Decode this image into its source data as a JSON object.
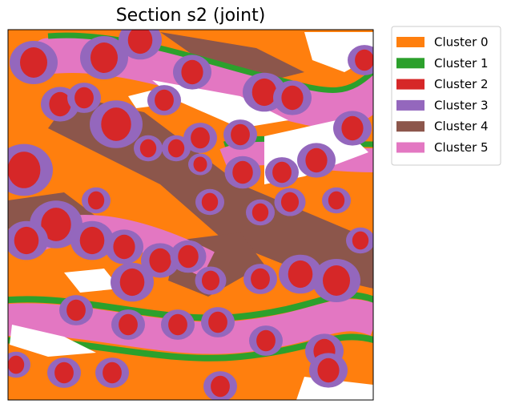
{
  "chart_data": {
    "type": "spatial",
    "title": "Section s2 (joint)",
    "series": [
      {
        "name": "Cluster 0",
        "color": "#ff7f0e"
      },
      {
        "name": "Cluster 1",
        "color": "#2ca02c"
      },
      {
        "name": "Cluster 2",
        "color": "#d62728"
      },
      {
        "name": "Cluster 3",
        "color": "#9467bd"
      },
      {
        "name": "Cluster 4",
        "color": "#8c564b"
      },
      {
        "name": "Cluster 5",
        "color": "#e377c2"
      }
    ]
  }
}
